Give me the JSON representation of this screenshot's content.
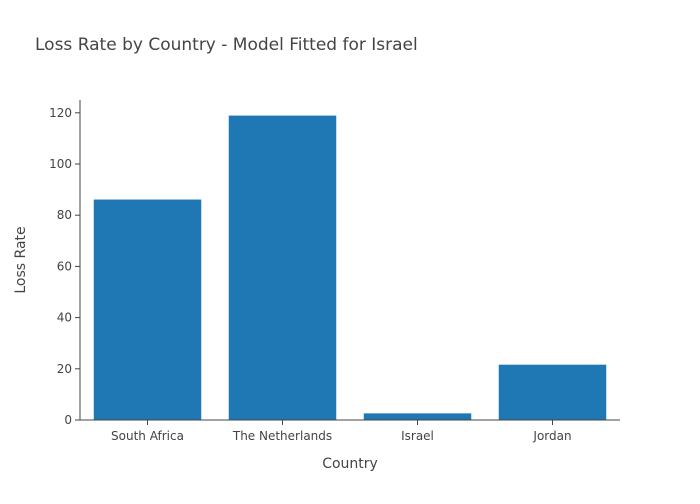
{
  "chart_data": {
    "type": "bar",
    "title": "Loss Rate by Country - Model Fitted for Israel",
    "xlabel": "Country",
    "ylabel": "Loss Rate",
    "categories": [
      "South Africa",
      "The Netherlands",
      "Israel",
      "Jordan"
    ],
    "values": [
      86.2,
      119.0,
      2.7,
      21.7
    ],
    "ylim": [
      0,
      125
    ],
    "yticks": [
      0,
      20,
      40,
      60,
      80,
      100,
      120
    ],
    "bar_color": "#1f77b4",
    "grid": false,
    "legend": "none"
  }
}
